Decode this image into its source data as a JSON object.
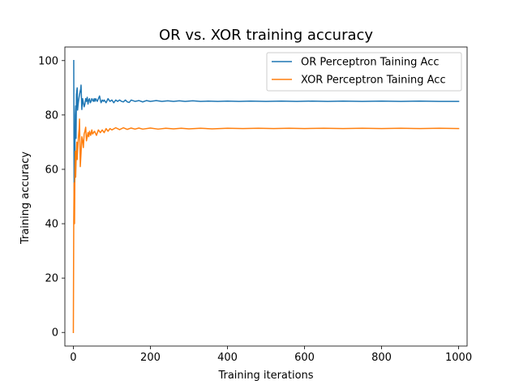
{
  "chart_data": {
    "type": "line",
    "title": "OR vs. XOR training accuracy",
    "xlabel": "Training iterations",
    "ylabel": "Training accuracy",
    "xlim": [
      -22,
      1022
    ],
    "ylim": [
      -5,
      105
    ],
    "xticks": [
      0,
      200,
      400,
      600,
      800,
      1000
    ],
    "yticks": [
      0,
      20,
      40,
      60,
      80,
      100
    ],
    "grid": false,
    "legend_position": "top-right",
    "series": [
      {
        "name": "OR Perceptron Taining Acc",
        "color": "#1f77b4",
        "x": [
          1,
          2,
          3,
          4,
          5,
          6,
          7,
          8,
          9,
          10,
          11,
          12,
          13,
          14,
          15,
          16,
          17,
          18,
          19,
          20,
          22,
          24,
          26,
          28,
          30,
          32,
          34,
          36,
          38,
          40,
          42,
          44,
          46,
          48,
          50,
          52,
          54,
          56,
          58,
          60,
          62,
          65,
          68,
          70,
          72,
          75,
          78,
          80,
          85,
          90,
          95,
          100,
          105,
          110,
          115,
          120,
          125,
          130,
          135,
          140,
          145,
          150,
          160,
          170,
          180,
          190,
          200,
          215,
          230,
          245,
          260,
          275,
          290,
          310,
          330,
          350,
          375,
          400,
          430,
          460,
          500,
          540,
          580,
          620,
          660,
          700,
          750,
          800,
          850,
          900,
          950,
          1000
        ],
        "y": [
          100,
          50,
          75,
          66.7,
          80,
          83.3,
          71.4,
          87.5,
          88.9,
          90,
          81.8,
          83.3,
          84.6,
          85.7,
          86.7,
          87.5,
          88.2,
          88.9,
          89.5,
          91,
          82,
          86,
          84.5,
          83,
          84,
          86,
          85,
          86.5,
          84,
          85.5,
          86,
          84.5,
          85,
          86,
          85.5,
          85,
          86,
          85,
          86,
          85.5,
          85,
          86,
          87,
          85.5,
          84.5,
          85.5,
          85,
          85.5,
          84.5,
          86,
          85,
          85.5,
          84.5,
          85.5,
          85,
          85.5,
          85,
          84.8,
          85.5,
          84.8,
          84.6,
          85.5,
          85,
          85.3,
          84.8,
          85.3,
          85,
          85.3,
          85,
          85.2,
          85,
          85.2,
          85,
          85.2,
          85,
          85.1,
          85,
          85.1,
          85,
          85.1,
          85,
          85.1,
          85,
          85.1,
          85,
          85.1,
          85,
          85.1,
          85,
          85.1,
          85,
          85
        ]
      },
      {
        "name": "XOR Perceptron Taining Acc",
        "color": "#ff7f0e",
        "x": [
          0,
          1,
          2,
          3,
          4,
          5,
          6,
          7,
          8,
          9,
          10,
          11,
          12,
          13,
          14,
          15,
          16,
          18,
          20,
          22,
          24,
          26,
          28,
          30,
          32,
          34,
          36,
          38,
          40,
          42,
          45,
          48,
          50,
          55,
          60,
          65,
          70,
          75,
          80,
          85,
          90,
          95,
          100,
          110,
          120,
          130,
          140,
          150,
          160,
          170,
          180,
          200,
          220,
          240,
          260,
          280,
          300,
          330,
          360,
          400,
          440,
          480,
          520,
          560,
          600,
          650,
          700,
          750,
          800,
          850,
          900,
          950,
          1000
        ],
        "y": [
          0,
          40,
          55,
          40,
          60,
          66.7,
          57.1,
          62.5,
          66.7,
          70,
          63.6,
          66.7,
          69.2,
          71.4,
          73.3,
          75,
          78.5,
          61,
          66,
          72,
          70.5,
          68,
          73,
          74,
          75.5,
          70.5,
          72,
          73.5,
          72,
          74,
          72.5,
          74.5,
          73,
          74,
          72.5,
          74.5,
          73.5,
          74.5,
          73.5,
          75,
          74,
          75,
          74.5,
          75.3,
          74.6,
          75.3,
          74.7,
          75.2,
          74.8,
          75.2,
          74.8,
          75.2,
          74.8,
          75.1,
          74.9,
          75.1,
          74.9,
          75.1,
          74.9,
          75.1,
          75,
          75.1,
          75,
          75.1,
          75,
          75.1,
          75,
          75.1,
          75,
          75.1,
          75,
          75.1,
          75
        ]
      }
    ]
  }
}
